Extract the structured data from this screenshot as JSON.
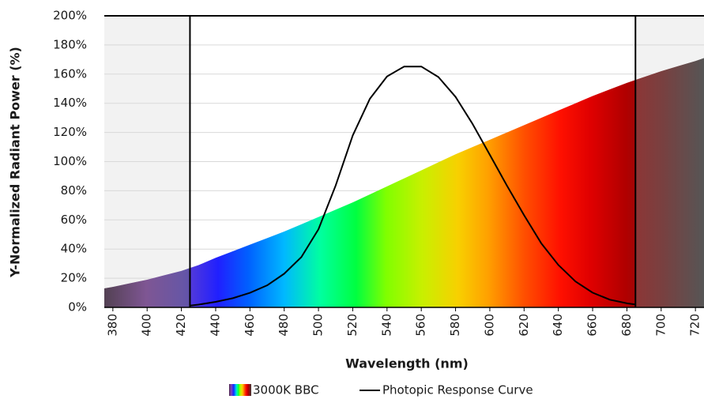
{
  "chart_data": {
    "type": "area",
    "x_label": "Wavelength (nm)",
    "y_label": "Y-Normalized Radiant Power (%)",
    "x": [
      375,
      380,
      390,
      400,
      410,
      420,
      425,
      430,
      440,
      450,
      460,
      470,
      480,
      490,
      500,
      510,
      520,
      530,
      540,
      550,
      560,
      570,
      580,
      590,
      600,
      610,
      620,
      630,
      640,
      650,
      660,
      670,
      680,
      685,
      690,
      700,
      710,
      720,
      725
    ],
    "series": [
      {
        "name": "3000K BBC",
        "type": "area",
        "color": "spectrum",
        "values": [
          13,
          14,
          16.5,
          19,
          22,
          25,
          27,
          29,
          34,
          38.5,
          43,
          47.5,
          52,
          57,
          62,
          67,
          72,
          77.5,
          83,
          88.5,
          94,
          99.5,
          105,
          110,
          115,
          120,
          125,
          130,
          135,
          140,
          145,
          149.5,
          154,
          156,
          158,
          162,
          165.5,
          169,
          171
        ]
      },
      {
        "name": "Photopic Response Curve",
        "type": "line",
        "color": "#000000",
        "values": [
          null,
          null,
          null,
          null,
          null,
          null,
          1.2,
          1.9,
          3.8,
          6.3,
          10.0,
          15.1,
          23.1,
          34.5,
          53.6,
          83.5,
          117.9,
          143.1,
          158.4,
          165.2,
          165.2,
          158.0,
          144.4,
          125.7,
          104.7,
          83.5,
          63.2,
          44.0,
          29.1,
          17.8,
          10.1,
          5.3,
          2.8,
          2.0,
          null,
          null,
          null,
          null,
          null
        ]
      }
    ],
    "shaded_regions": [
      [
        375,
        425
      ],
      [
        685,
        725
      ]
    ],
    "xlim": [
      375,
      725
    ],
    "xticks": [
      380,
      400,
      420,
      440,
      460,
      480,
      500,
      520,
      540,
      560,
      580,
      600,
      620,
      640,
      660,
      680,
      700,
      720
    ],
    "ylim": [
      0,
      200
    ],
    "yticks": [
      {
        "value": 0,
        "label": "0%"
      },
      {
        "value": 20,
        "label": "20%"
      },
      {
        "value": 40,
        "label": "40%"
      },
      {
        "value": 60,
        "label": "60%"
      },
      {
        "value": 80,
        "label": "80%"
      },
      {
        "value": 100,
        "label": "100%"
      },
      {
        "value": 120,
        "label": "120%"
      },
      {
        "value": 140,
        "label": "140%"
      },
      {
        "value": 160,
        "label": "160%"
      },
      {
        "value": 180,
        "label": "180%"
      },
      {
        "value": 200,
        "label": "200%"
      }
    ],
    "grid": true
  }
}
